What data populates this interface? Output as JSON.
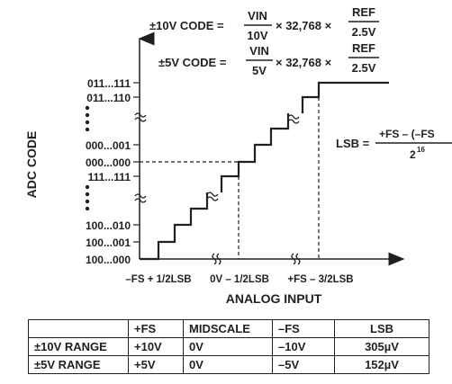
{
  "formulas": {
    "code10_prefix": "±10V CODE =",
    "code10_num": "VIN",
    "code10_den": "10V",
    "code10_mult": "× 32,768 ×",
    "code10_ref_num": "REF",
    "code10_ref_den": "2.5V",
    "code5_prefix": "±5V CODE =",
    "code5_num": "VIN",
    "code5_den": "5V",
    "code5_mult": "× 32,768 ×",
    "code5_ref_num": "REF",
    "code5_ref_den": "2.5V",
    "lsb_prefix": "LSB =",
    "lsb_num": "+FS – (–FS",
    "lsb_den_base": "2",
    "lsb_den_exp": "16"
  },
  "axes": {
    "ylabel": "ADC CODE",
    "xlabel": "ANALOG INPUT",
    "y_ticks": [
      "011...111",
      "011...110",
      "000...001",
      "000...000",
      "111...111",
      "100...010",
      "100...001",
      "100...000"
    ],
    "x_ticks": [
      "–FS + 1/2LSB",
      "0V – 1/2LSB",
      "+FS – 3/2LSB"
    ]
  },
  "table": {
    "headers": [
      "",
      "+FS",
      "MIDSCALE",
      "–FS",
      "LSB"
    ],
    "rows": [
      [
        "±10V RANGE",
        "+10V",
        "0V",
        "–10V",
        "305µV"
      ],
      [
        "±5V RANGE",
        "+5V",
        "0V",
        "–5V",
        "152µV"
      ]
    ]
  }
}
